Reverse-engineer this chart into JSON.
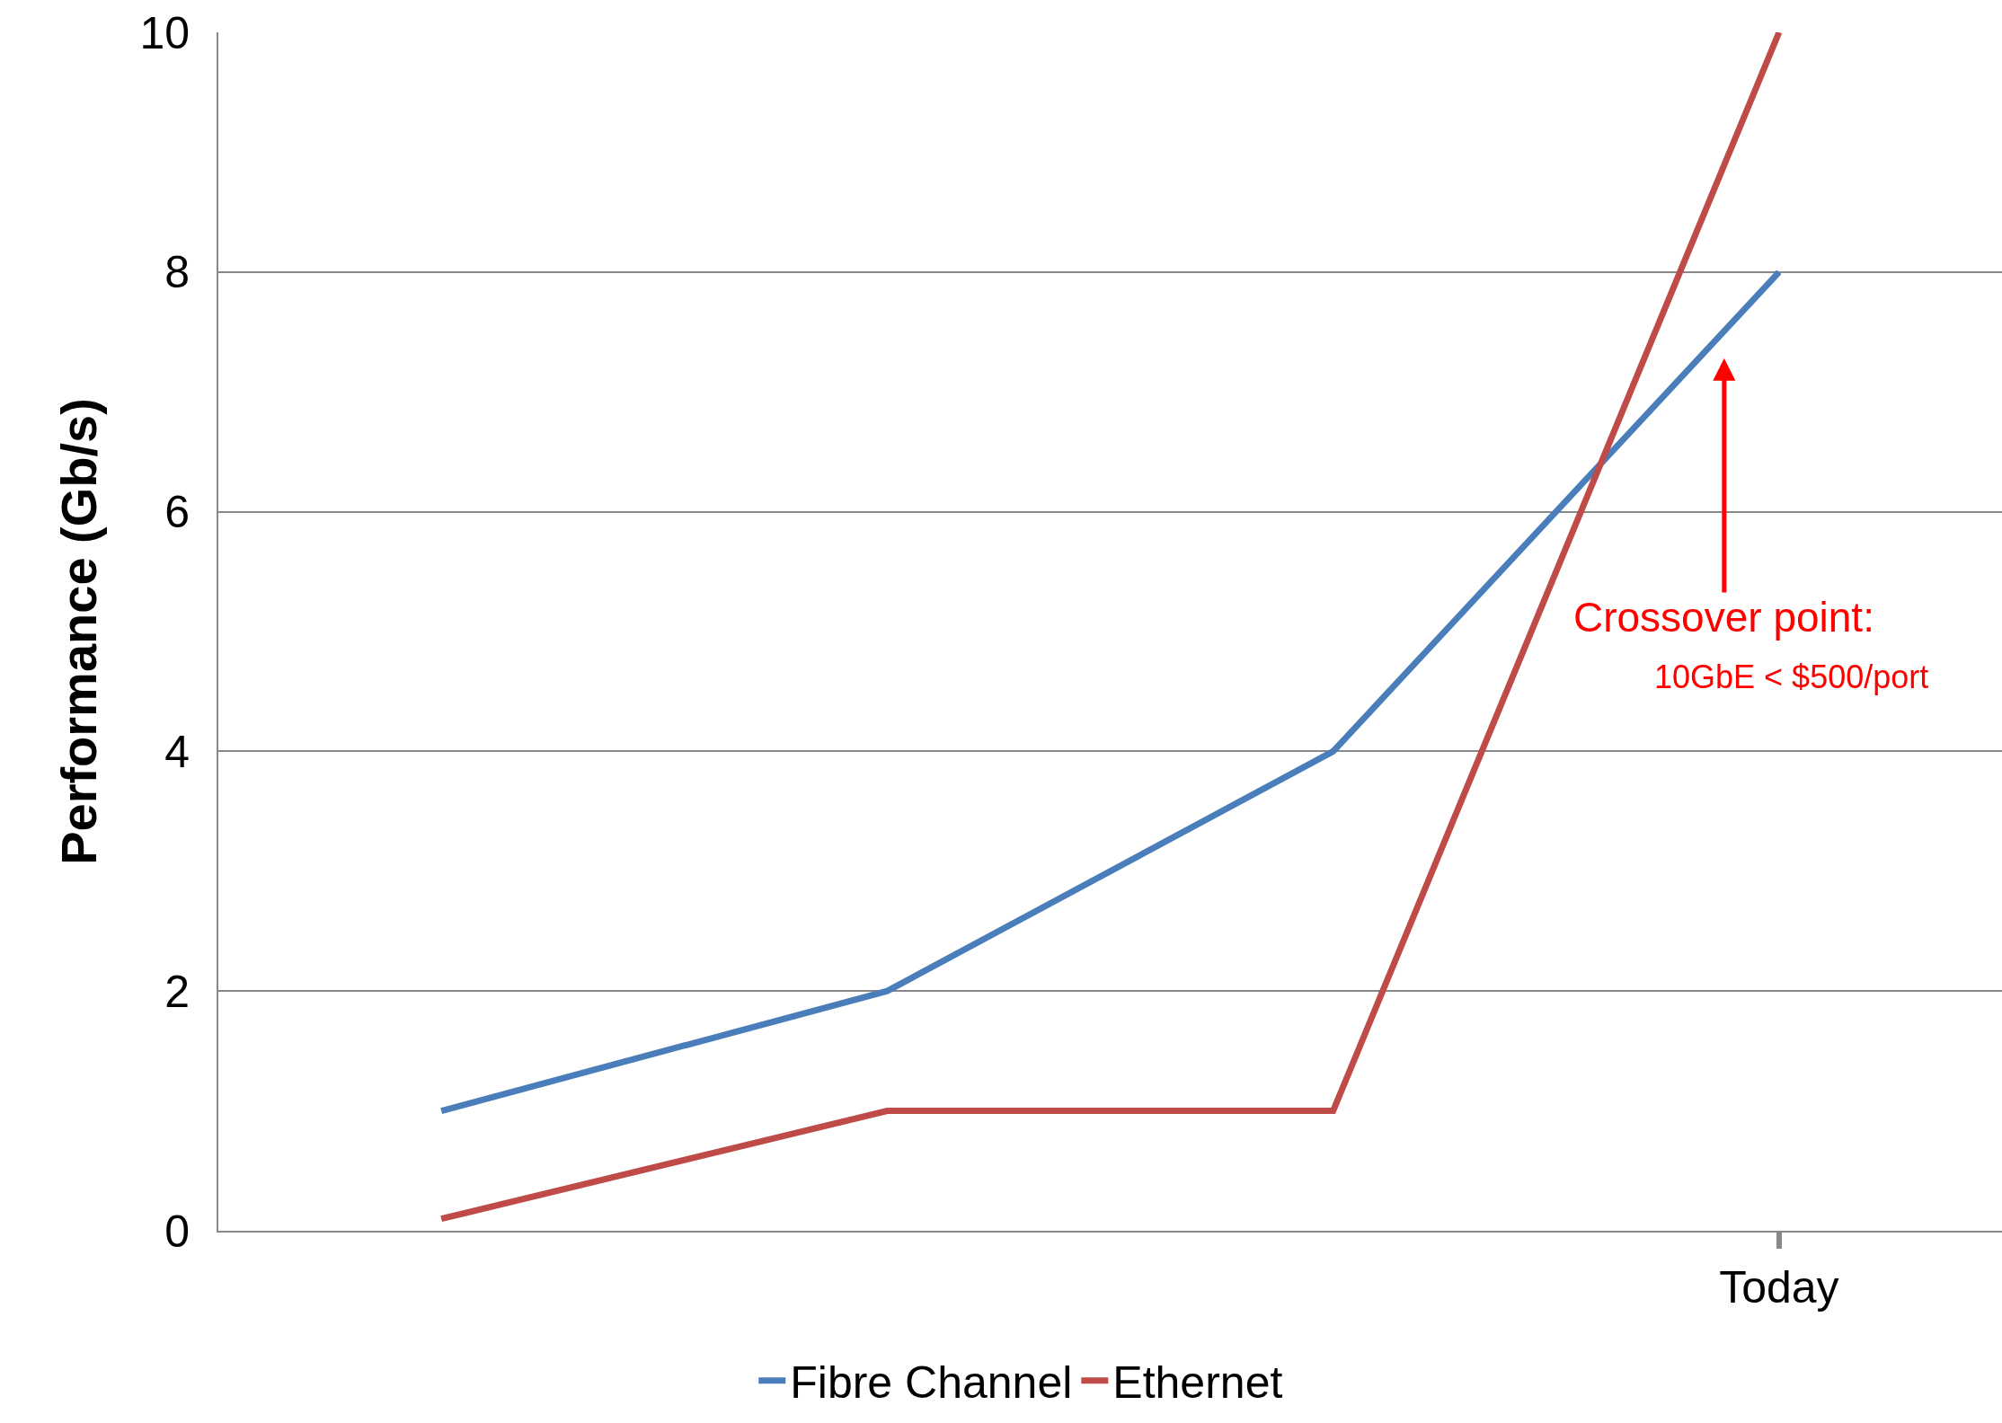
{
  "chart_data": {
    "type": "line",
    "ylabel": "Performance (Gb/s)",
    "categories": [
      null,
      null,
      null,
      "Today"
    ],
    "series": [
      {
        "name": "Fibre Channel",
        "color": "#4a7ebb",
        "values": [
          1,
          2,
          4,
          8
        ]
      },
      {
        "name": "Ethernet",
        "color": "#be4b48",
        "values": [
          0.1,
          1,
          1,
          10
        ]
      }
    ],
    "ylim": [
      0,
      10
    ],
    "yticks": [
      0,
      2,
      4,
      6,
      8,
      10
    ],
    "grid": "y",
    "legend": "bottom",
    "marker": "none",
    "line_style": "solid",
    "annotations": [
      "Crossover point:",
      "10GbE < $500/port"
    ]
  }
}
